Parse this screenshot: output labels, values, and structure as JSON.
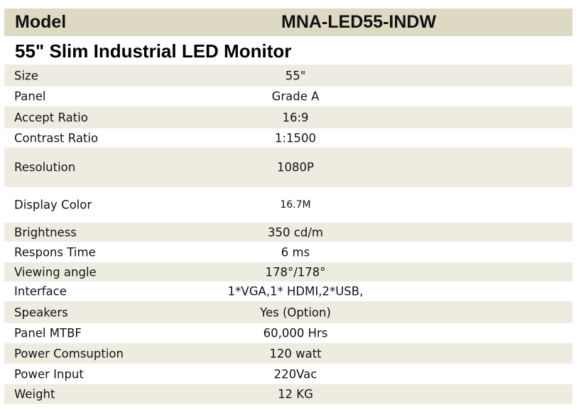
{
  "header": {
    "model_label": "Model",
    "model_value": "MNA-LED55-INDW"
  },
  "title": "55\" Slim Industrial LED Monitor",
  "specs": [
    {
      "label": "Size",
      "value": "55\""
    },
    {
      "label": "Panel",
      "value": "Grade A"
    },
    {
      "label": "Accept Ratio",
      "value": "16:9"
    },
    {
      "label": "Contrast Ratio",
      "value": "1:1500"
    },
    {
      "label": "Resolution",
      "value": "1080P"
    },
    {
      "label": "Display Color",
      "value": "16.7M"
    },
    {
      "label": "Brightness",
      "value": "350 cd/m"
    },
    {
      "label": "Respons Time",
      "value": "6 ms"
    },
    {
      "label": "Viewing angle",
      "value": "178°/178°"
    },
    {
      "label": "Interface",
      "value": "1*VGA,1* HDMI,2*USB,"
    },
    {
      "label": "Speakers",
      "value": "Yes (Option)"
    },
    {
      "label": "Panel MTBF",
      "value": "60,000 Hrs"
    },
    {
      "label": "Power Comsuption",
      "value": "120 watt"
    },
    {
      "label": "Power Input",
      "value": "220Vac"
    },
    {
      "label": "Weight",
      "value": "12 KG"
    }
  ],
  "colors": {
    "header_bg": "#ddd9c3",
    "row_shaded": "#eeece1",
    "row_plain": "#ffffff"
  }
}
